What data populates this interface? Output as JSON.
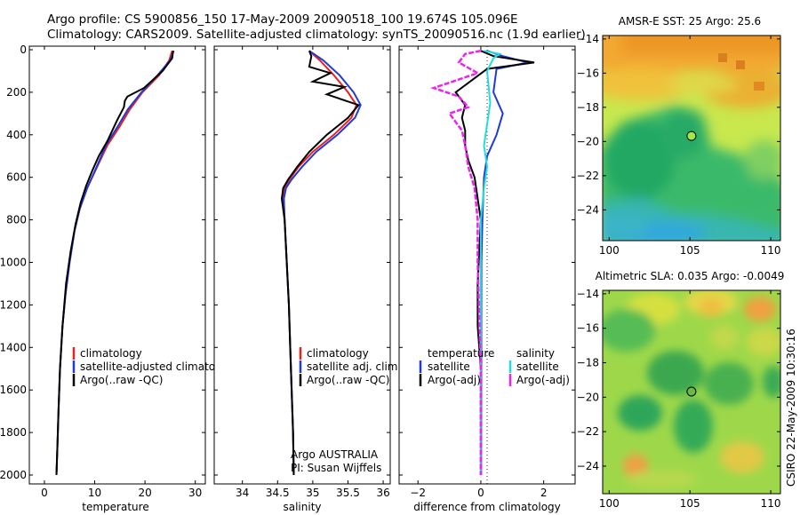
{
  "header": {
    "line1": "Argo profile: CS 5900856_150 17-May-2009 20090518_100 19.674S 105.096E",
    "line2": "Climatology: CARS2009. Satellite-adjusted climatology: synTS_20090516.nc (1.9d earlier)"
  },
  "colors": {
    "climatology": "#e8231f",
    "satellite": "#1f3ad6",
    "argo": "#000000",
    "argo_adj_salinity": "#ee22ee",
    "satellite_salinity": "#22dddd"
  },
  "chart_data": [
    {
      "type": "line",
      "name": "temperature panel",
      "xlabel": "temperature",
      "xlim": [
        -3,
        32
      ],
      "ylim": [
        2000,
        0
      ],
      "xticks": [
        0,
        10,
        20,
        30
      ],
      "yticks": [
        0,
        200,
        400,
        600,
        800,
        1000,
        1200,
        1400,
        1600,
        1800,
        2000
      ],
      "legend": {
        "placement": "lower-right",
        "entries": [
          "climatology",
          "satellite-adjusted climatology",
          "Argo(..raw -QC)"
        ]
      },
      "series": [
        {
          "name": "climatology",
          "color": "#e8231f",
          "x": [
            25.4,
            24.8,
            22.8,
            19.5,
            17.0,
            15.0,
            12.5,
            10.5,
            8.5,
            7.0,
            6.0,
            5.0,
            4.2,
            3.6,
            3.1,
            2.8,
            2.6,
            2.4
          ],
          "y": [
            5,
            50,
            120,
            200,
            280,
            360,
            450,
            550,
            650,
            750,
            850,
            1000,
            1150,
            1300,
            1500,
            1700,
            1850,
            2000
          ]
        },
        {
          "name": "satellite-adjusted climatology",
          "color": "#1f3ad6",
          "x": [
            25.7,
            25.0,
            22.5,
            19.3,
            16.6,
            14.6,
            12.2,
            10.4,
            8.5,
            7.0,
            6.0,
            5.0,
            4.2,
            3.6,
            3.1,
            2.8,
            2.6,
            2.4
          ],
          "y": [
            5,
            50,
            120,
            200,
            280,
            360,
            450,
            550,
            650,
            750,
            850,
            1000,
            1150,
            1300,
            1500,
            1700,
            1850,
            2000
          ]
        },
        {
          "name": "Argo(..raw -QC)",
          "color": "#000000",
          "x": [
            25.6,
            25.4,
            23.5,
            19.8,
            16.5,
            16.0,
            15.8,
            14.5,
            12.5,
            10.8,
            9.5,
            8.3,
            7.2,
            6.2,
            5.2,
            4.3,
            3.6,
            3.1,
            2.8,
            2.6,
            2.4
          ],
          "y": [
            5,
            40,
            100,
            180,
            220,
            240,
            270,
            330,
            430,
            500,
            570,
            640,
            720,
            820,
            950,
            1100,
            1300,
            1500,
            1700,
            1850,
            2000
          ]
        }
      ]
    },
    {
      "type": "line",
      "name": "salinity panel",
      "xlabel": "salinity",
      "xlim": [
        33.6,
        36.1
      ],
      "ylim": [
        2000,
        0
      ],
      "xticks": [
        34,
        34.5,
        35,
        35.5,
        36
      ],
      "legend": {
        "placement": "lower-right",
        "entries": [
          "climatology",
          "satellite adj. clim.",
          "Argo(..raw -QC)"
        ]
      },
      "annotations": [
        "Argo AUSTRALIA",
        "PI: Susan Wijffels"
      ],
      "series": [
        {
          "name": "climatology",
          "color": "#e8231f",
          "x": [
            34.95,
            35.1,
            35.3,
            35.5,
            35.62,
            35.55,
            35.3,
            35.0,
            34.8,
            34.67,
            34.6,
            34.58,
            34.6,
            34.63,
            34.66,
            34.68,
            34.7,
            34.72,
            34.73
          ],
          "y": [
            5,
            50,
            120,
            200,
            260,
            320,
            400,
            480,
            550,
            610,
            650,
            700,
            800,
            1000,
            1200,
            1400,
            1600,
            1800,
            2000
          ]
        },
        {
          "name": "satellite adj. clim.",
          "color": "#1f3ad6",
          "x": [
            34.95,
            35.15,
            35.38,
            35.58,
            35.68,
            35.6,
            35.35,
            35.05,
            34.85,
            34.7,
            34.62,
            34.59,
            34.6,
            34.63,
            34.66,
            34.68,
            34.7,
            34.72,
            34.73
          ],
          "y": [
            5,
            50,
            120,
            200,
            260,
            320,
            400,
            480,
            550,
            610,
            650,
            700,
            800,
            1000,
            1200,
            1400,
            1600,
            1800,
            2000
          ]
        },
        {
          "name": "Argo(..raw -QC)",
          "color": "#000000",
          "x": [
            34.95,
            34.98,
            34.95,
            35.25,
            35.0,
            35.45,
            35.2,
            35.65,
            35.5,
            35.2,
            34.95,
            34.78,
            34.65,
            34.58,
            34.56,
            34.6,
            34.63,
            34.66,
            34.68,
            34.7,
            34.72,
            34.73
          ],
          "y": [
            5,
            30,
            80,
            110,
            150,
            175,
            210,
            260,
            320,
            400,
            480,
            550,
            610,
            650,
            700,
            800,
            1000,
            1200,
            1400,
            1600,
            1800,
            2000
          ]
        }
      ]
    },
    {
      "type": "line",
      "name": "difference panel",
      "xlabel": "difference from climatology",
      "xlim": [
        -2.6,
        3.0
      ],
      "ylim": [
        2000,
        0
      ],
      "xticks": [
        -2,
        0,
        2
      ],
      "legend": {
        "placement": "lower-middle",
        "columns": [
          {
            "heading": "temperature",
            "entries": [
              "satellite",
              "Argo(-adj)"
            ]
          },
          {
            "heading": "salinity",
            "entries": [
              "satellite",
              "Argo(-adj)"
            ]
          }
        ]
      },
      "series": [
        {
          "name": "temperature satellite",
          "color": "#1f3ad6",
          "x": [
            0.2,
            0.7,
            1.5,
            0.5,
            0.4,
            0.7,
            0.5,
            0.2,
            0.1,
            0.05,
            0.02,
            0.01
          ],
          "y": [
            5,
            30,
            60,
            90,
            200,
            300,
            400,
            500,
            600,
            800,
            1000,
            2000
          ]
        },
        {
          "name": "temperature Argo(-adj)",
          "color": "#000000",
          "x": [
            0.0,
            0.4,
            1.7,
            0.2,
            -0.8,
            -0.5,
            -0.6,
            -0.5,
            -0.5,
            -0.4,
            -0.2,
            -0.1,
            0.0,
            -0.1,
            -0.1,
            0.0,
            0.0
          ],
          "y": [
            5,
            30,
            60,
            90,
            200,
            260,
            320,
            380,
            450,
            520,
            600,
            700,
            800,
            1100,
            1300,
            1500,
            2000
          ]
        },
        {
          "name": "salinity satellite",
          "color": "#22dddd",
          "x": [
            0.1,
            0.6,
            0.4,
            0.2,
            0.3,
            0.2,
            0.1,
            0.2,
            0.1,
            0.0,
            0.0,
            0.0
          ],
          "y": [
            5,
            20,
            40,
            100,
            250,
            350,
            450,
            550,
            650,
            800,
            900,
            2000
          ]
        },
        {
          "name": "salinity Argo(-adj)",
          "color": "#ee22ee",
          "x": [
            0.0,
            -0.5,
            -0.7,
            -0.1,
            -0.9,
            -1.5,
            -0.7,
            -0.4,
            -1.0,
            -0.6,
            -0.5,
            -0.4,
            -0.2,
            -0.1,
            -0.1,
            0.0,
            0.0
          ],
          "y": [
            5,
            20,
            60,
            110,
            150,
            180,
            220,
            270,
            300,
            380,
            450,
            550,
            650,
            800,
            1000,
            1500,
            2000
          ]
        }
      ]
    },
    {
      "type": "heatmap",
      "name": "sst map",
      "title": "AMSR-E SST: 25 Argo: 25.6",
      "xlim": [
        99.6,
        110.6
      ],
      "ylim": [
        -25.8,
        -13.8
      ],
      "xticks": [
        100,
        105,
        110
      ],
      "yticks": [
        -14,
        -16,
        -18,
        -20,
        -22,
        -24
      ],
      "marker": {
        "lon": 105.096,
        "lat": -19.674,
        "color": "#9ee84a"
      }
    },
    {
      "type": "heatmap",
      "name": "sla map",
      "title": "Altimetric SLA: 0.035 Argo: -0.0049",
      "xlim": [
        99.6,
        110.6
      ],
      "ylim": [
        -25.6,
        -13.8
      ],
      "xticks": [
        100,
        105,
        110
      ],
      "yticks": [
        -14,
        -16,
        -18,
        -20,
        -22,
        -24
      ],
      "marker": {
        "lon": 105.096,
        "lat": -19.674,
        "color": "#6ab846"
      }
    }
  ],
  "footer": {
    "stamp": "CSIRO 22-May-2009 10:30:16"
  }
}
